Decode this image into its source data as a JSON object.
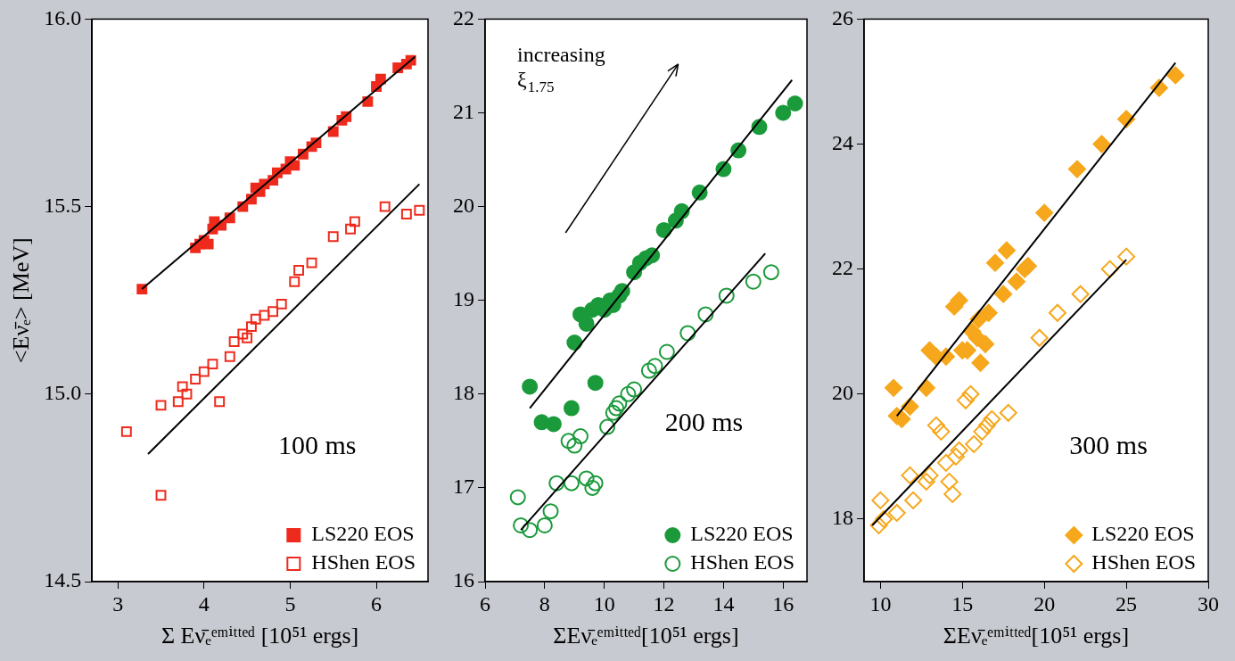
{
  "chart_data": [
    {
      "type": "scatter",
      "x_label": "Σ Eν̄ₑᵉᵐⁱᵗᵗᵉᵈ [10⁵¹ ergs]",
      "y_label": "<Eν̄ₑ> [MeV]",
      "annotations": [
        "100 ms"
      ],
      "xlim": [
        2.7,
        6.6
      ],
      "xticks": [
        3,
        4,
        5,
        6
      ],
      "ylim": [
        14.5,
        16.0
      ],
      "yticks": [
        14.5,
        {
          "value": 15,
          "label": "15.0"
        },
        15.5,
        {
          "value": 16,
          "label": "16.0"
        }
      ],
      "grid": false,
      "legend": "lower right",
      "series": [
        {
          "name": "LS220 EOS",
          "color": "#ee2a1c",
          "marker": "square",
          "x": [
            3.28,
            3.9,
            3.95,
            4.0,
            4.05,
            4.1,
            4.12,
            4.2,
            4.3,
            4.45,
            4.55,
            4.6,
            4.65,
            4.7,
            4.8,
            4.85,
            4.95,
            5.0,
            5.05,
            5.15,
            5.25,
            5.3,
            5.5,
            5.6,
            5.65,
            5.9,
            6.0,
            6.05,
            6.25,
            6.35,
            6.4
          ],
          "values": [
            15.28,
            15.39,
            15.4,
            15.41,
            15.4,
            15.44,
            15.46,
            15.45,
            15.47,
            15.5,
            15.52,
            15.55,
            15.54,
            15.56,
            15.57,
            15.59,
            15.6,
            15.62,
            15.61,
            15.64,
            15.66,
            15.67,
            15.7,
            15.73,
            15.74,
            15.78,
            15.82,
            15.84,
            15.87,
            15.88,
            15.89
          ]
        },
        {
          "name": "HShen EOS",
          "color": "#ee2a1c",
          "marker": "square-open",
          "x": [
            3.1,
            3.5,
            3.5,
            3.7,
            3.75,
            3.8,
            3.9,
            4.0,
            4.1,
            4.18,
            4.3,
            4.35,
            4.45,
            4.5,
            4.55,
            4.6,
            4.7,
            4.8,
            4.9,
            5.05,
            5.1,
            5.25,
            5.5,
            5.7,
            5.75,
            6.1,
            6.35,
            6.5
          ],
          "values": [
            14.9,
            14.73,
            14.97,
            14.98,
            15.02,
            15.0,
            15.04,
            15.06,
            15.08,
            14.98,
            15.1,
            15.14,
            15.16,
            15.15,
            15.18,
            15.2,
            15.21,
            15.22,
            15.24,
            15.3,
            15.33,
            15.35,
            15.42,
            15.44,
            15.46,
            15.5,
            15.48,
            15.49
          ]
        },
        {
          "type": "line",
          "color": "#000000",
          "marker": "none",
          "line_style": "solid",
          "x": [
            3.28,
            6.45
          ],
          "values": [
            15.28,
            15.9
          ]
        },
        {
          "type": "line",
          "color": "#000000",
          "marker": "none",
          "line_style": "solid",
          "x": [
            3.35,
            6.5
          ],
          "values": [
            14.84,
            15.56
          ]
        }
      ]
    },
    {
      "type": "scatter",
      "x_label": "ΣEν̄ₑᵉᵐⁱᵗᵗᵉᵈ[10⁵¹ ergs]",
      "annotations": [
        "200 ms",
        "increasing ξ1.75"
      ],
      "xlim": [
        6,
        16.8
      ],
      "xticks": [
        6,
        8,
        10,
        12,
        14,
        16
      ],
      "ylim": [
        16,
        22
      ],
      "yticks": [
        16,
        17,
        18,
        19,
        20,
        21,
        22
      ],
      "grid": false,
      "legend": "lower right",
      "series": [
        {
          "name": "LS220 EOS",
          "color": "#1b9a3b",
          "marker": "circle",
          "x": [
            7.5,
            7.9,
            8.3,
            8.9,
            9.0,
            9.2,
            9.4,
            9.6,
            9.7,
            9.8,
            10.0,
            10.2,
            10.3,
            10.5,
            10.6,
            11.0,
            11.2,
            11.4,
            11.6,
            12.0,
            12.4,
            12.6,
            13.2,
            14.0,
            14.5,
            15.2,
            16.0,
            16.4
          ],
          "values": [
            18.08,
            17.7,
            17.68,
            17.85,
            18.55,
            18.85,
            18.75,
            18.9,
            18.12,
            18.95,
            18.9,
            19.0,
            18.95,
            19.05,
            19.1,
            19.3,
            19.4,
            19.45,
            19.48,
            19.75,
            19.85,
            19.95,
            20.15,
            20.4,
            20.6,
            20.85,
            21.0,
            21.1
          ]
        },
        {
          "name": "HShen EOS",
          "color": "#1b9a3b",
          "marker": "circle-open",
          "x": [
            7.1,
            7.2,
            7.5,
            8.0,
            8.2,
            8.4,
            8.9,
            8.8,
            9.0,
            9.2,
            9.4,
            9.6,
            9.7,
            10.1,
            10.3,
            10.4,
            10.5,
            10.8,
            11.0,
            11.5,
            11.7,
            12.1,
            12.8,
            13.4,
            14.1,
            15.0,
            15.6
          ],
          "values": [
            16.9,
            16.6,
            16.55,
            16.6,
            16.75,
            17.05,
            17.05,
            17.5,
            17.45,
            17.55,
            17.1,
            17.0,
            17.05,
            17.65,
            17.8,
            17.85,
            17.9,
            18.0,
            18.05,
            18.25,
            18.3,
            18.45,
            18.65,
            18.85,
            19.05,
            19.2,
            19.3
          ]
        },
        {
          "type": "line",
          "color": "#000000",
          "marker": "none",
          "line_style": "solid",
          "x": [
            7.5,
            16.3
          ],
          "values": [
            17.85,
            21.35
          ]
        },
        {
          "type": "line",
          "color": "#000000",
          "marker": "none",
          "line_style": "solid",
          "x": [
            7.2,
            15.4
          ],
          "values": [
            16.55,
            19.5
          ]
        }
      ]
    },
    {
      "type": "scatter",
      "x_label": "ΣEν̄ₑᵉᵐⁱᵗᵗᵉᵈ[10⁵¹ ergs]",
      "annotations": [
        "300 ms"
      ],
      "xlim": [
        9,
        30
      ],
      "xticks": [
        10,
        15,
        20,
        25,
        30
      ],
      "ylim": [
        17,
        26
      ],
      "yticks": [
        18,
        20,
        22,
        24,
        26
      ],
      "grid": false,
      "legend": "lower right",
      "series": [
        {
          "name": "LS220 EOS",
          "color": "#f6a71b",
          "marker": "diamond",
          "x": [
            10.8,
            11.0,
            11.3,
            11.8,
            12.8,
            13.0,
            13.4,
            14.0,
            14.5,
            14.8,
            15.0,
            15.3,
            15.6,
            15.9,
            16.0,
            16.1,
            16.4,
            16.6,
            17.0,
            17.5,
            17.7,
            18.3,
            18.8,
            19.0,
            20.0,
            22.0,
            23.5,
            25.0,
            27.0,
            28.0
          ],
          "values": [
            20.1,
            19.65,
            19.6,
            19.8,
            20.1,
            20.7,
            20.6,
            20.6,
            21.4,
            21.5,
            20.7,
            20.7,
            21.0,
            20.9,
            21.2,
            20.5,
            20.8,
            21.3,
            22.1,
            21.6,
            22.3,
            21.8,
            22.0,
            22.05,
            22.9,
            23.6,
            24.0,
            24.4,
            24.9,
            25.1
          ]
        },
        {
          "name": "HShen EOS",
          "color": "#f6a71b",
          "marker": "diamond-open",
          "x": [
            9.9,
            10.0,
            10.2,
            11.0,
            11.8,
            12.0,
            12.8,
            13.0,
            13.4,
            13.7,
            14.0,
            14.2,
            14.4,
            14.6,
            14.8,
            15.2,
            15.5,
            15.7,
            16.2,
            16.5,
            16.8,
            17.8,
            19.7,
            20.8,
            22.2,
            24.0,
            25.0
          ],
          "values": [
            17.9,
            18.3,
            18.0,
            18.1,
            18.7,
            18.3,
            18.6,
            18.7,
            19.5,
            19.4,
            18.9,
            18.6,
            18.4,
            19.0,
            19.1,
            19.9,
            20.0,
            19.2,
            19.4,
            19.5,
            19.6,
            19.7,
            20.9,
            21.3,
            21.6,
            22.0,
            22.2
          ]
        },
        {
          "type": "line",
          "color": "#000000",
          "marker": "none",
          "line_style": "solid",
          "x": [
            11.0,
            28.0
          ],
          "values": [
            19.65,
            25.3
          ]
        },
        {
          "type": "line",
          "color": "#000000",
          "marker": "none",
          "line_style": "solid",
          "x": [
            9.5,
            25.0
          ],
          "values": [
            17.9,
            22.15
          ]
        }
      ]
    }
  ]
}
